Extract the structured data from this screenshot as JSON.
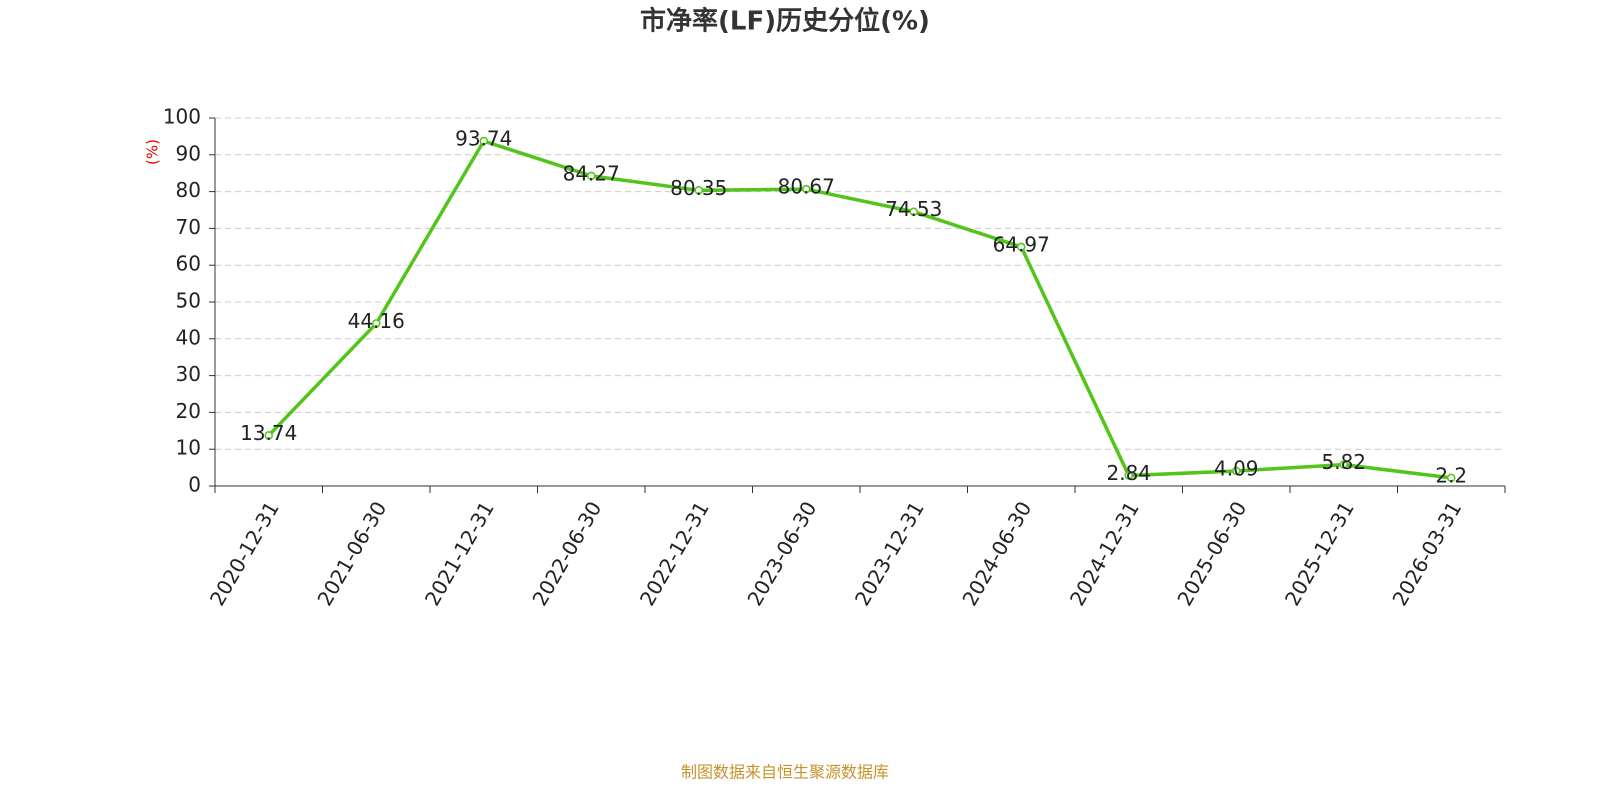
{
  "chart_data": {
    "type": "line",
    "title": "市净率(LF)历史分位(%)",
    "y_label": "(%)",
    "source": "制图数据来自恒生聚源数据库",
    "categories": [
      "2020-12-31",
      "2021-06-30",
      "2021-12-31",
      "2022-06-30",
      "2022-12-31",
      "2023-06-30",
      "2023-12-31",
      "2024-06-30",
      "2024-12-31",
      "2025-06-30",
      "2025-12-31",
      "2026-03-31"
    ],
    "series": [
      {
        "name": "市净率(LF)历史分位",
        "color": "#52c41a",
        "values": [
          13.74,
          44.16,
          93.74,
          84.27,
          80.35,
          80.67,
          74.53,
          64.97,
          2.84,
          4.09,
          5.82,
          2.2
        ]
      }
    ],
    "ylim": [
      0,
      100
    ],
    "yticks": [
      0,
      10,
      20,
      30,
      40,
      50,
      60,
      70,
      80,
      90,
      100
    ],
    "grid": true
  }
}
